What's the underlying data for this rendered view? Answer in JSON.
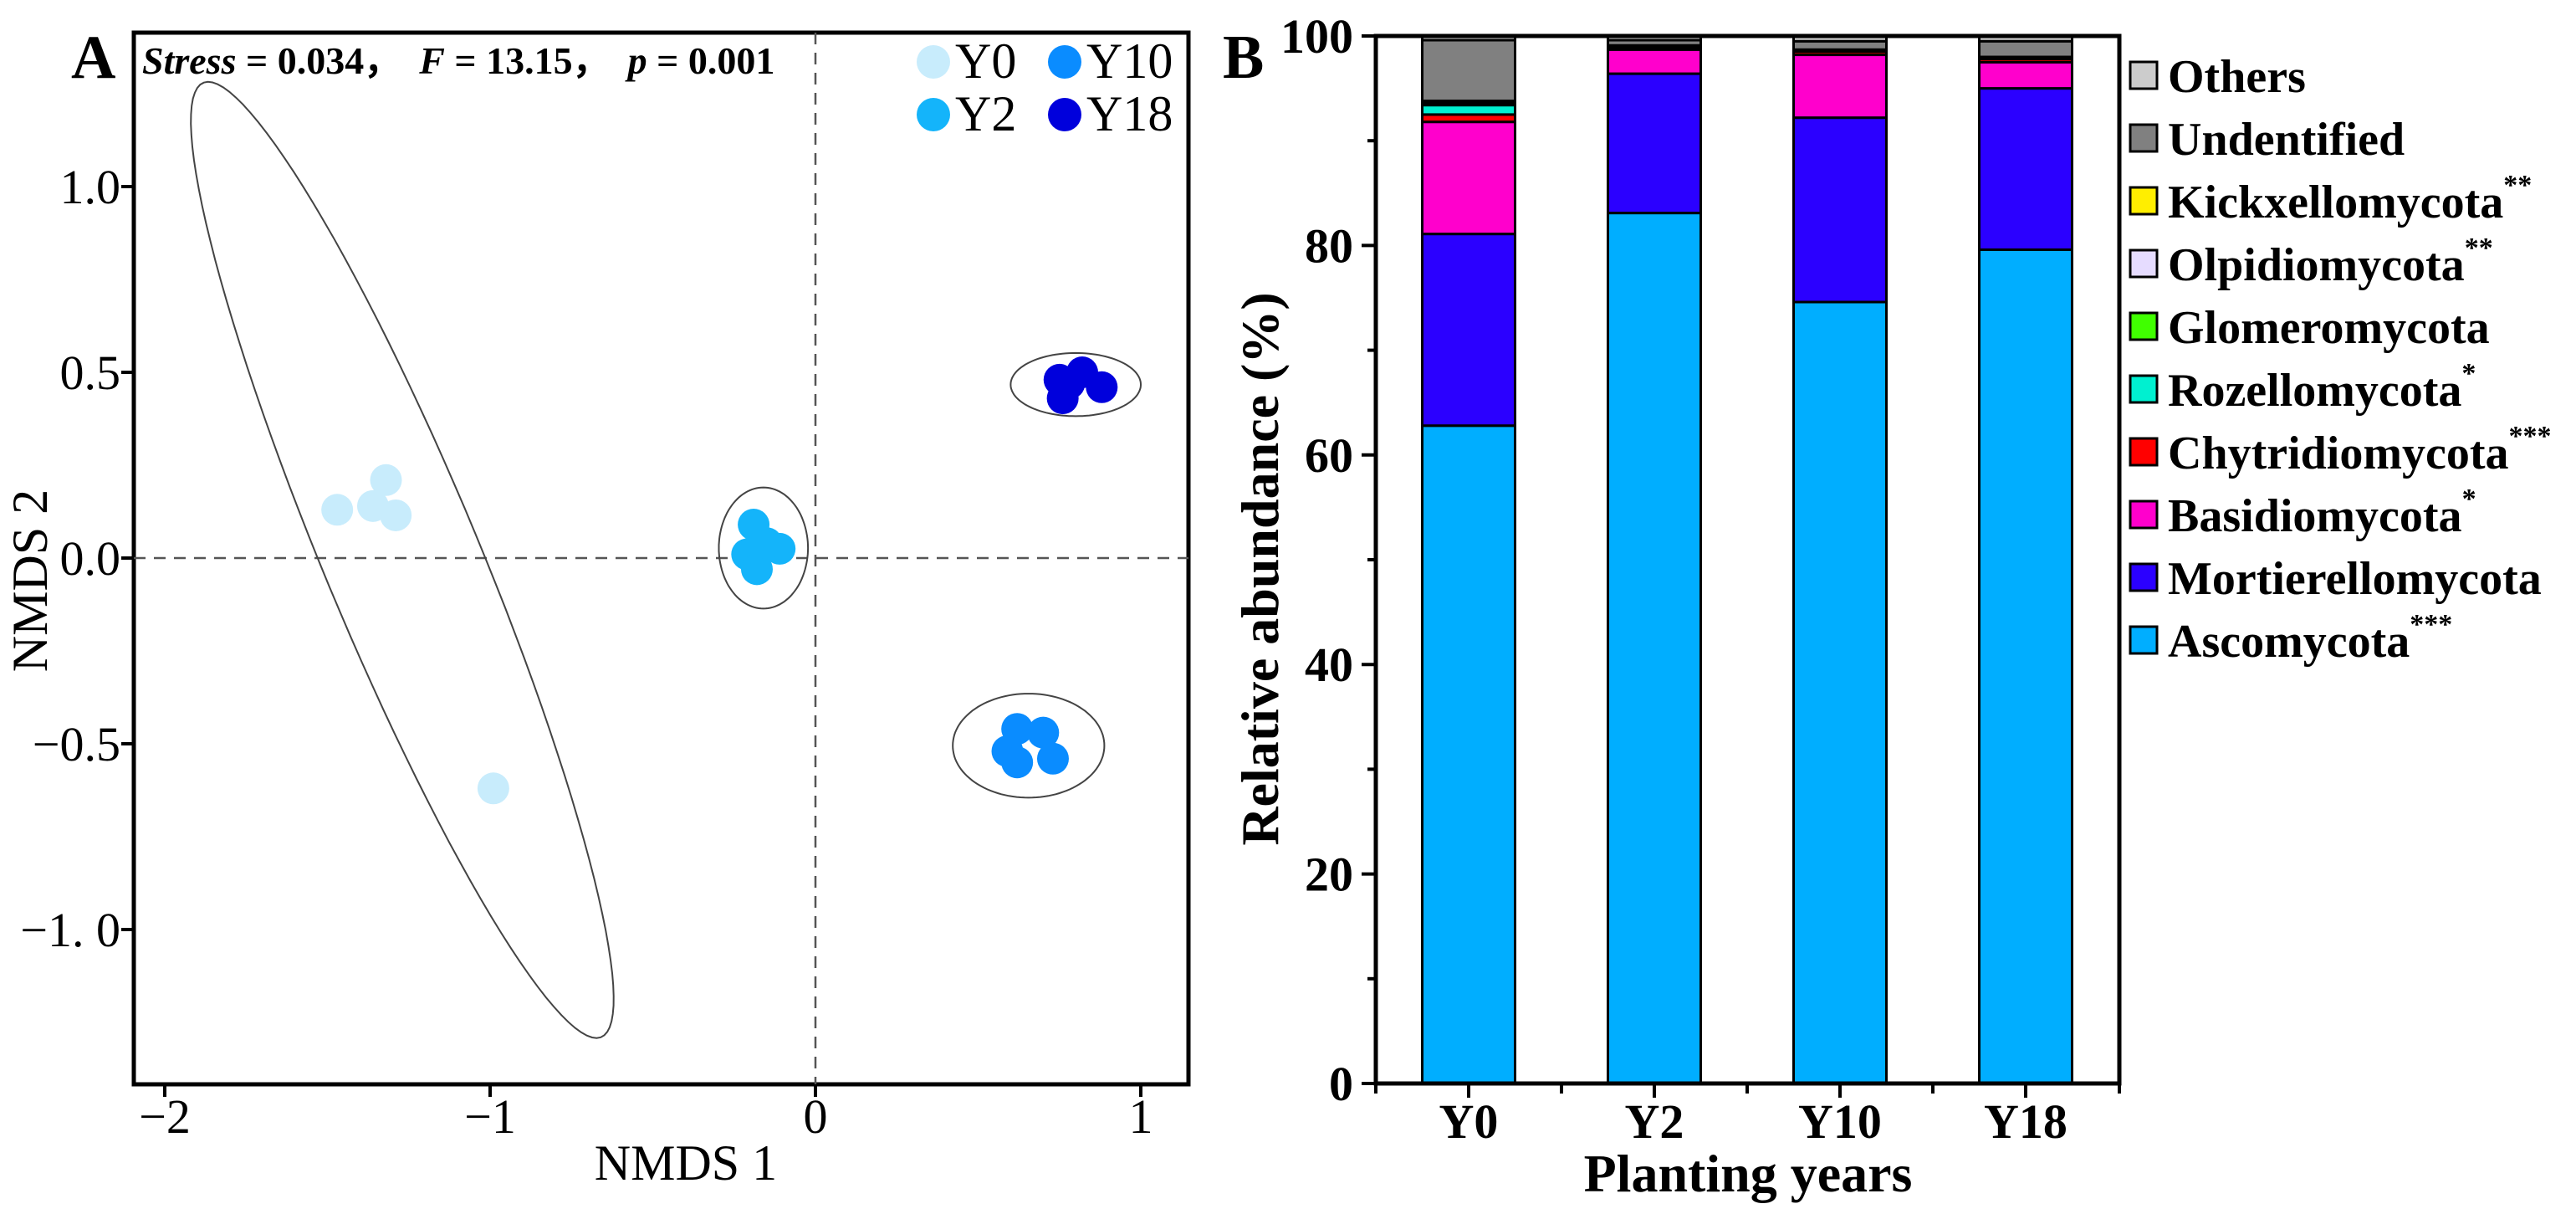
{
  "chart_data": [
    {
      "panel": "A",
      "type": "scatter",
      "panel_label": "A",
      "title": {
        "stress_label": "Stress",
        "stress_rest": " = 0.034，",
        "f_label": "F",
        "f_rest": " = 13.15，",
        "p_label": "p",
        "p_rest": " = 0.001"
      },
      "xlabel": "NMDS 1",
      "ylabel": "NMDS 2",
      "xlim": [
        -2.1,
        1.15
      ],
      "ylim": [
        -1.42,
        1.42
      ],
      "xticks": [
        {
          "v": -2,
          "label": "−2"
        },
        {
          "v": -1,
          "label": "−1"
        },
        {
          "v": 0,
          "label": "0"
        },
        {
          "v": 1,
          "label": "1"
        }
      ],
      "yticks": [
        {
          "v": 1.0,
          "label": "1.0"
        },
        {
          "v": 0.5,
          "label": "0.5"
        },
        {
          "v": 0.0,
          "label": "0.0"
        },
        {
          "v": -0.5,
          "label": "−0.5"
        },
        {
          "v": -1.0,
          "label": "−1. 0"
        }
      ],
      "reference_lines": {
        "x": 0,
        "y": 0
      },
      "legend_position": "top-right",
      "series": [
        {
          "name": "Y0",
          "color": "#c8ecfc",
          "points": [
            [
              -1.47,
              0.13
            ],
            [
              -1.36,
              0.14
            ],
            [
              -1.32,
              0.21
            ],
            [
              -1.29,
              0.115
            ],
            [
              -0.99,
              -0.62
            ]
          ],
          "ellipse": {
            "center": [
              -1.27,
              -0.005
            ],
            "major": [
              0.61,
              -1.285
            ],
            "minor": [
              0.224,
              0.072
            ]
          }
        },
        {
          "name": "Y2",
          "color": "#14b4fa",
          "points": [
            [
              -0.19,
              0.09
            ],
            [
              -0.21,
              0.01
            ],
            [
              -0.18,
              -0.03
            ],
            [
              -0.11,
              0.025
            ],
            [
              -0.15,
              0.04
            ]
          ],
          "ellipse": {
            "center": [
              -0.16,
              0.027
            ],
            "major": [
              0.0,
              0.163
            ],
            "minor": [
              0.137,
              0.0
            ]
          }
        },
        {
          "name": "Y10",
          "color": "#0a8cff",
          "points": [
            [
              0.62,
              -0.46
            ],
            [
              0.7,
              -0.47
            ],
            [
              0.59,
              -0.52
            ],
            [
              0.62,
              -0.55
            ],
            [
              0.73,
              -0.54
            ]
          ],
          "ellipse": {
            "center": [
              0.655,
              -0.505
            ],
            "major": [
              0.233,
              0.0
            ],
            "minor": [
              0.0,
              0.14
            ]
          }
        },
        {
          "name": "Y18",
          "color": "#0000dc",
          "points": [
            [
              0.75,
              0.48
            ],
            [
              0.82,
              0.5
            ],
            [
              0.88,
              0.46
            ],
            [
              0.76,
              0.43
            ],
            [
              0.78,
              0.47
            ]
          ],
          "ellipse": {
            "center": [
              0.8,
              0.467
            ],
            "major": [
              0.2,
              0.0
            ],
            "minor": [
              0.0,
              0.085
            ]
          }
        }
      ]
    },
    {
      "panel": "B",
      "type": "bar",
      "stacked": true,
      "panel_label": "B",
      "xlabel": "Planting years",
      "ylabel": "Relative abundance (%)",
      "ylim": [
        0,
        100
      ],
      "yticks": [
        0,
        20,
        40,
        60,
        80,
        100
      ],
      "categories": [
        "Y0",
        "Y2",
        "Y10",
        "Y18"
      ],
      "legend_position": "right",
      "series": [
        {
          "name": "Ascomycota",
          "stars": "***",
          "color": "#00aeff",
          "values": [
            62.8,
            83.1,
            74.6,
            79.6
          ]
        },
        {
          "name": "Mortierellomycota",
          "stars": "",
          "color": "#2b00ff",
          "values": [
            18.3,
            13.3,
            17.6,
            15.4
          ]
        },
        {
          "name": "Basidiomycota",
          "stars": "*",
          "color": "#ff00cc",
          "values": [
            10.7,
            2.3,
            6.0,
            2.5
          ]
        },
        {
          "name": "Chytridiomycota",
          "stars": "***",
          "color": "#ff0000",
          "values": [
            0.7,
            0.2,
            0.3,
            0.3
          ]
        },
        {
          "name": "Rozellomycota",
          "stars": "*",
          "color": "#00f0d0",
          "values": [
            0.9,
            0.1,
            0.1,
            0.1
          ]
        },
        {
          "name": "Glomeromycota",
          "stars": "",
          "color": "#40ff00",
          "values": [
            0.2,
            0.05,
            0.05,
            0.1
          ]
        },
        {
          "name": "Olpidiomycota",
          "stars": "**",
          "color": "#e6dcff",
          "values": [
            0.1,
            0.05,
            0.05,
            0.0
          ]
        },
        {
          "name": "Kickxellomycota",
          "stars": "**",
          "color": "#ffee00",
          "values": [
            0.1,
            0.0,
            0.0,
            0.0
          ]
        },
        {
          "name": "Undentified",
          "stars": "",
          "color": "#808080",
          "values": [
            5.8,
            0.5,
            0.8,
            1.5
          ]
        },
        {
          "name": "Others",
          "stars": "",
          "color": "#cccccc",
          "values": [
            0.4,
            0.4,
            0.5,
            0.5
          ]
        }
      ]
    }
  ]
}
